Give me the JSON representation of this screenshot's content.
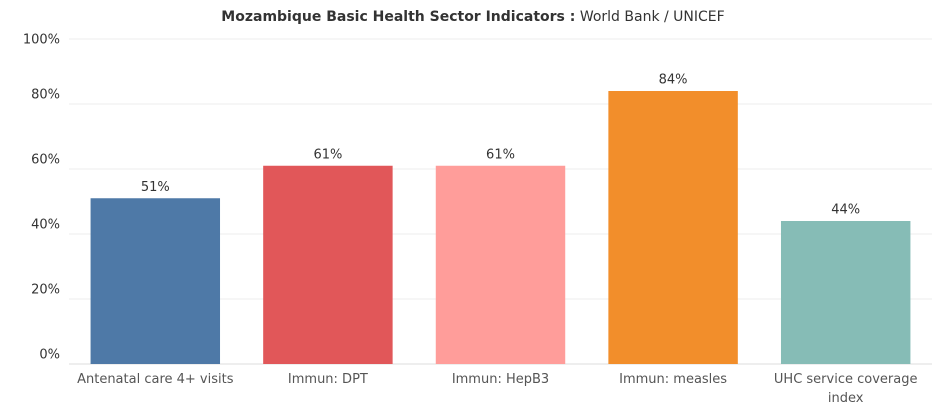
{
  "chart_data": {
    "type": "bar",
    "title": [
      "Mozambique  Basic Health Sector Indicators :",
      "World Bank / UNICEF"
    ],
    "categories": [
      "Antenatal care 4+ visits",
      "Immun: DPT",
      "Immun: HepB3",
      "Immun: measles",
      "UHC service coverage index"
    ],
    "values": [
      51,
      61,
      61,
      84,
      44
    ],
    "value_labels": [
      "51%",
      "61%",
      "61%",
      "84%",
      "44%"
    ],
    "colors": [
      "#4e79a7",
      "#e15759",
      "#ff9d9a",
      "#f28e2b",
      "#86bcb6"
    ],
    "ylim": [
      0,
      100
    ],
    "yticks": [
      {
        "value": 0,
        "label": "0%"
      },
      {
        "value": 20,
        "label": "20%"
      },
      {
        "value": 40,
        "label": "40%"
      },
      {
        "value": 60,
        "label": "60%"
      },
      {
        "value": 80,
        "label": "80%"
      },
      {
        "value": 100,
        "label": "100%"
      }
    ],
    "grid": true
  }
}
